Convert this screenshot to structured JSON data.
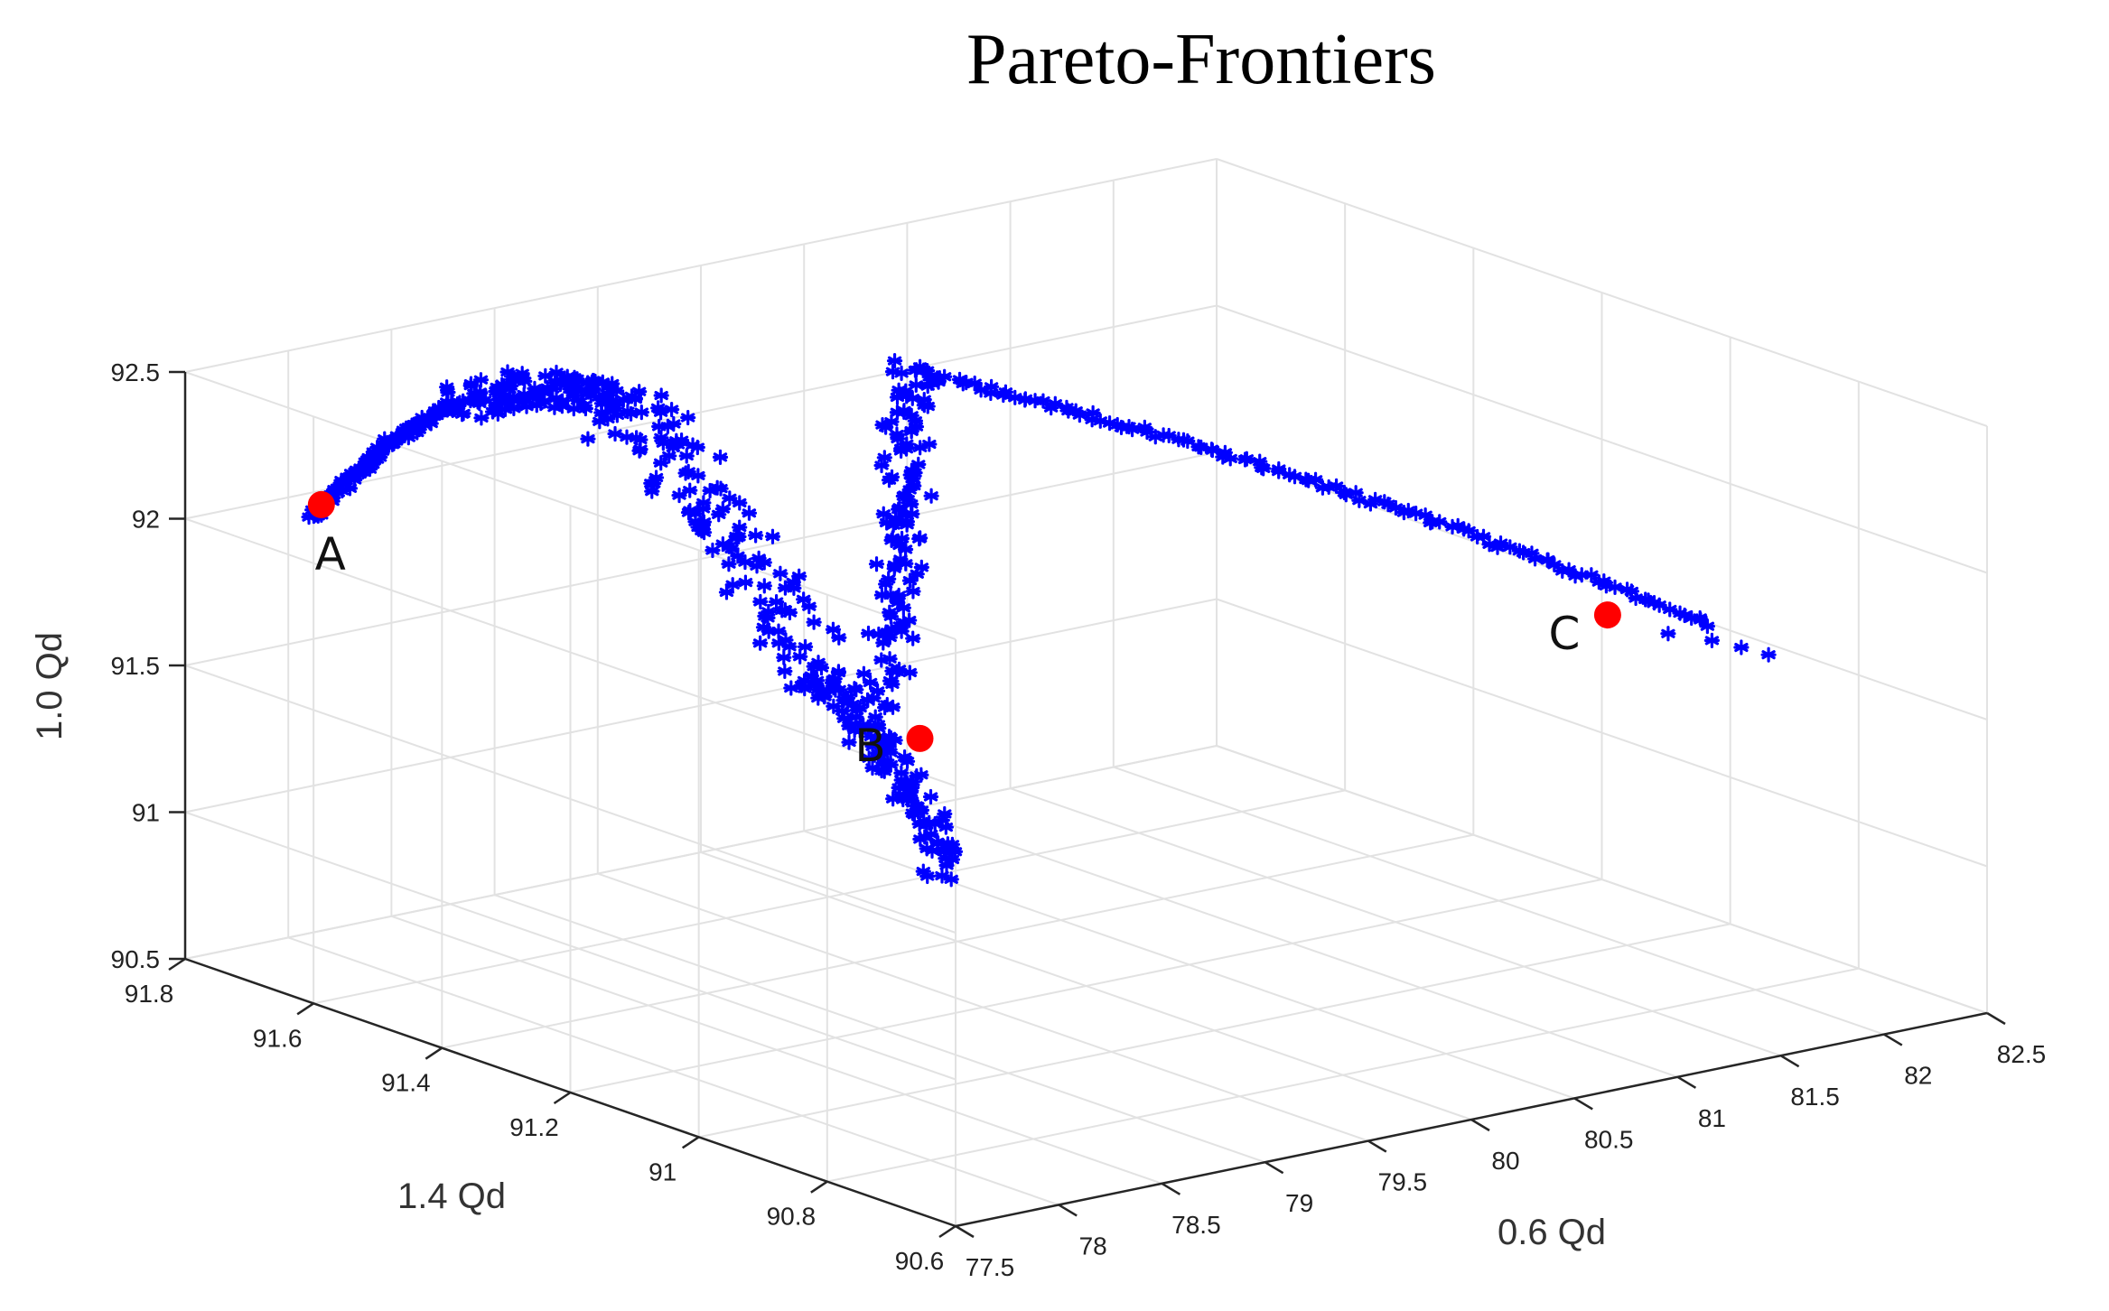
{
  "chart_data": {
    "type": "scatter",
    "projection": "3d",
    "title": "Pareto-Frontiers",
    "xlabel": "0.6 Qd",
    "ylabel": "1.4 Qd",
    "zlabel": "1.0 Qd",
    "xlim": [
      77.5,
      82.5
    ],
    "ylim": [
      90.6,
      91.8
    ],
    "zlim": [
      90.5,
      92.5
    ],
    "x_ticks": [
      "77.5",
      "78",
      "78.5",
      "79",
      "79.5",
      "80",
      "80.5",
      "81",
      "81.5",
      "82",
      "82.5"
    ],
    "y_ticks": [
      "90.6",
      "90.8",
      "91",
      "91.2",
      "91.4",
      "91.6",
      "91.8"
    ],
    "z_ticks": [
      "90.5",
      "91",
      "91.5",
      "92",
      "92.5"
    ],
    "grid": true,
    "series": [
      {
        "marker": "asterisk",
        "color": "#0000ff",
        "branches": [
          {
            "from": [
              77.55,
              91.62,
              92.13
            ],
            "to": [
              78.2,
              91.6,
              92.44
            ],
            "spread": 0.02
          },
          {
            "from": [
              78.2,
              91.6,
              92.44
            ],
            "to": [
              78.85,
              91.55,
              92.38
            ],
            "spread": 0.08
          },
          {
            "from": [
              78.85,
              91.55,
              92.38
            ],
            "to": [
              79.2,
              91.35,
              91.55
            ],
            "spread": 0.12
          },
          {
            "from": [
              79.2,
              91.35,
              91.55
            ],
            "to": [
              79.35,
              91.2,
              90.98
            ],
            "spread": 0.06
          },
          {
            "from": [
              79.35,
              91.3,
              91.5
            ],
            "to": [
              80.1,
              91.5,
              92.36
            ],
            "spread": 0.08
          },
          {
            "from": [
              80.1,
              91.5,
              92.36
            ],
            "to": [
              82.25,
              90.95,
              91.6
            ],
            "spread": 0.015
          }
        ]
      },
      {
        "name": "",
        "marker": "filled-circle",
        "color": "#ff0000",
        "points": [
          {
            "label": "A",
            "x": 77.6,
            "y": 91.62,
            "z": 92.17
          },
          {
            "label": "B",
            "x": 79.35,
            "y": 91.25,
            "z": 91.4
          },
          {
            "label": "C",
            "x": 81.75,
            "y": 90.95,
            "z": 91.7
          }
        ]
      }
    ],
    "annotations": [
      "A",
      "B",
      "C"
    ]
  }
}
